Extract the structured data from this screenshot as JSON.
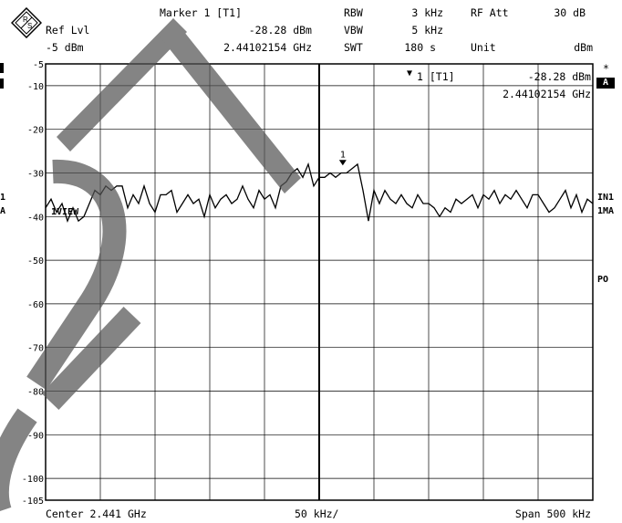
{
  "header": {
    "ref_lvl_label": "Ref Lvl",
    "ref_lvl_value": "-5 dBm",
    "marker_title": "Marker 1 [T1]",
    "marker_level": "-28.28 dBm",
    "marker_freq": "2.44102154 GHz",
    "rbw_label": "RBW",
    "rbw_value": "3 kHz",
    "vbw_label": "VBW",
    "vbw_value": "5 kHz",
    "swt_label": "SWT",
    "swt_value": "180 s",
    "rf_att_label": "RF Att",
    "rf_att_value": "30 dB",
    "unit_label": "Unit",
    "unit_value": "dBm"
  },
  "marker_box": {
    "label": "1 [T1]",
    "level": "-28.28 dBm",
    "freq": "2.44102154 GHz",
    "trace_tag": "1"
  },
  "side_labels": {
    "star": "*",
    "a_badge": "A",
    "in1": "IN1",
    "ma1": "1MA",
    "po": "PO",
    "left_1": "1",
    "left_a": "A",
    "view_label": "1VIEW"
  },
  "footer": {
    "center": "Center 2.441 GHz",
    "per_div": "50 kHz/",
    "span": "Span 500 kHz"
  },
  "chart_data": {
    "type": "line",
    "ylim": [
      -105,
      -5
    ],
    "ytick_labels": [
      "-5",
      "-10",
      "-20",
      "-30",
      "-40",
      "-50",
      "-60",
      "-70",
      "-80",
      "-90",
      "-100",
      "-105"
    ],
    "xlim_khz": [
      -250,
      250
    ],
    "x_divisions": 10,
    "xlabel": "",
    "ylabel": "",
    "marker": {
      "x_khz": 21.54,
      "y": -28.28,
      "label": "1"
    },
    "series": [
      {
        "x_khz": [
          -250,
          -245,
          -240,
          -235,
          -230,
          -225,
          -220,
          -215,
          -210,
          -205,
          -200,
          -195,
          -190,
          -185,
          -180,
          -175,
          -170,
          -165,
          -160,
          -155,
          -150,
          -145,
          -140,
          -135,
          -130,
          -125,
          -120,
          -115,
          -110,
          -105,
          -100,
          -95,
          -90,
          -85,
          -80,
          -75,
          -70,
          -65,
          -60,
          -55,
          -50,
          -45,
          -40,
          -35,
          -30,
          -25,
          -20,
          -15,
          -10,
          -5,
          0,
          5,
          10,
          15,
          20,
          25,
          30,
          35,
          40,
          45,
          50,
          55,
          60,
          65,
          70,
          75,
          80,
          85,
          90,
          95,
          100,
          105,
          110,
          115,
          120,
          125,
          130,
          135,
          140,
          145,
          150,
          155,
          160,
          165,
          170,
          175,
          180,
          185,
          190,
          195,
          200,
          205,
          210,
          215,
          220,
          225,
          230,
          235,
          240,
          245,
          250
        ],
        "values": [
          -38,
          -36,
          -39,
          -37,
          -41,
          -38,
          -41,
          -40,
          -37,
          -34,
          -35,
          -33,
          -34,
          -33,
          -33,
          -38,
          -35,
          -37,
          -33,
          -37,
          -39,
          -35,
          -35,
          -34,
          -39,
          -37,
          -35,
          -37,
          -36,
          -40,
          -35,
          -38,
          -36,
          -35,
          -37,
          -36,
          -33,
          -36,
          -38,
          -34,
          -36,
          -35,
          -38,
          -33,
          -32,
          -30,
          -29,
          -31,
          -28,
          -33,
          -31,
          -31,
          -30,
          -31,
          -30,
          -30,
          -29,
          -28,
          -34,
          -41,
          -34,
          -37,
          -34,
          -36,
          -37,
          -35,
          -37,
          -38,
          -35,
          -37,
          -37,
          -38,
          -40,
          -38,
          -39,
          -36,
          -37,
          -36,
          -35,
          -38,
          -35,
          -36,
          -34,
          -37,
          -35,
          -36,
          -34,
          -36,
          -38,
          -35,
          -35,
          -37,
          -39,
          -38,
          -36,
          -34,
          -38,
          -35,
          -39,
          -36,
          -37
        ]
      }
    ]
  }
}
